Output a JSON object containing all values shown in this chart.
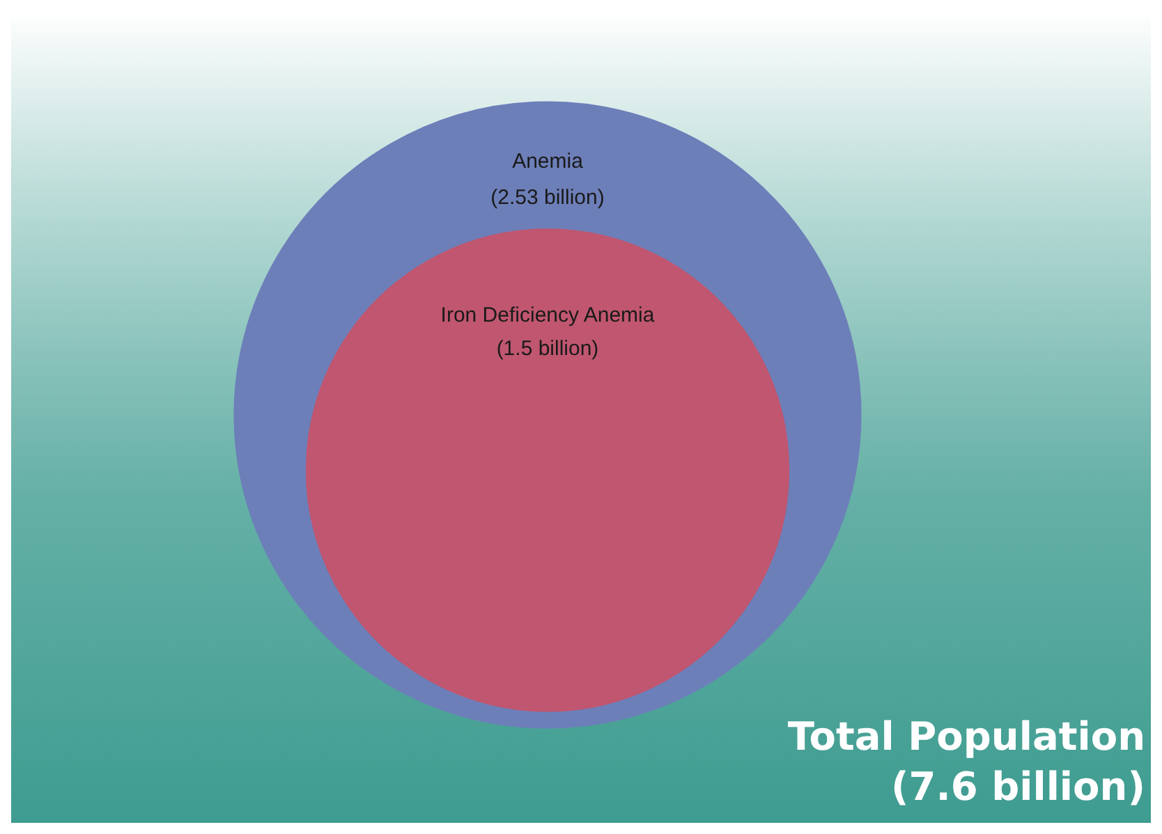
{
  "chart_data": {
    "type": "other",
    "categories": [
      "Total Population",
      "Anemia",
      "Iron Deficiency Anemia"
    ],
    "values": [
      7.6,
      2.53,
      1.5
    ],
    "value_labels": [
      "(7.6 billion)",
      "(2.53 billion)",
      "(1.5 billion)"
    ],
    "colors": [
      "#3e9c90",
      "#6d7fb9",
      "#c0566f"
    ]
  }
}
